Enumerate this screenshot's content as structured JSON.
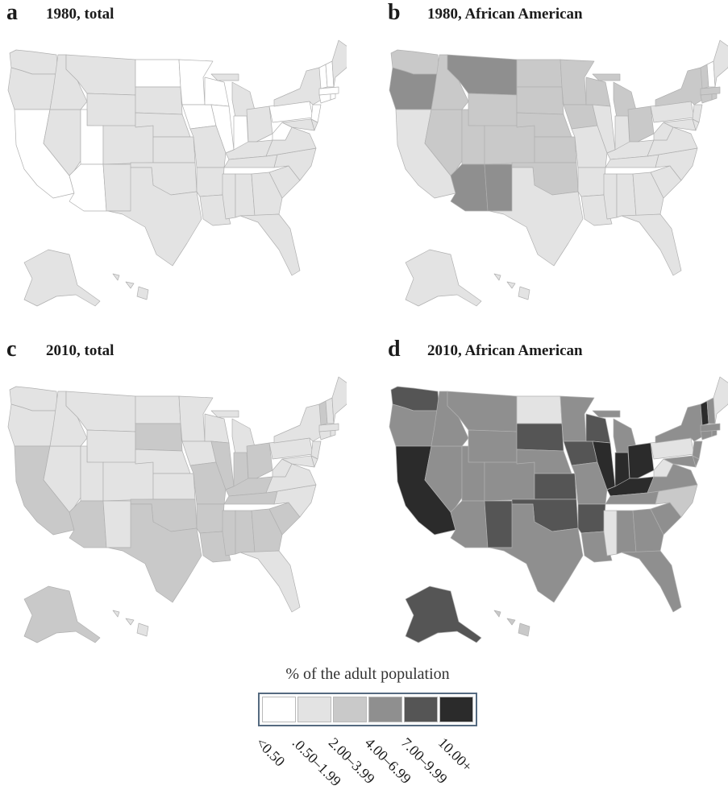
{
  "panels": [
    {
      "id": "a",
      "letter": "a",
      "title": "1980, total",
      "default_color": "#e3e3e3",
      "colors": {
        "CA": "#ffffff",
        "UT": "#ffffff",
        "AZ": "#ffffff",
        "ND": "#ffffff",
        "MN": "#ffffff",
        "IA": "#ffffff",
        "WI": "#ffffff",
        "IL": "#ffffff",
        "IN": "#ffffff",
        "WV": "#ffffff",
        "PA": "#ffffff",
        "NY": "#e3e3e3",
        "NH": "#ffffff",
        "VT": "#ffffff",
        "MA": "#ffffff",
        "CT": "#ffffff",
        "RI": "#ffffff",
        "NJ": "#ffffff"
      }
    },
    {
      "id": "b",
      "letter": "b",
      "title": "1980, African American",
      "default_color": "#e3e3e3",
      "colors": {
        "WA": "#c9c9c9",
        "OR": "#8f8f8f",
        "MT": "#8f8f8f",
        "AZ": "#8f8f8f",
        "NM": "#8f8f8f",
        "ID": "#c9c9c9",
        "NV": "#c9c9c9",
        "UT": "#c9c9c9",
        "WY": "#c9c9c9",
        "CO": "#c9c9c9",
        "ND": "#c9c9c9",
        "SD": "#c9c9c9",
        "NE": "#c9c9c9",
        "KS": "#c9c9c9",
        "MN": "#c9c9c9",
        "IA": "#c9c9c9",
        "WI": "#c9c9c9",
        "MI": "#c9c9c9",
        "OH": "#c9c9c9",
        "OK": "#c9c9c9",
        "NY": "#c9c9c9",
        "PA": "#e3e3e3",
        "VT": "#c9c9c9",
        "NH": "#ffffff",
        "CT": "#c9c9c9",
        "RI": "#c9c9c9",
        "MA": "#c9c9c9"
      }
    },
    {
      "id": "c",
      "letter": "c",
      "title": "2010, total",
      "default_color": "#e3e3e3",
      "colors": {
        "CA": "#c9c9c9",
        "AZ": "#c9c9c9",
        "SD": "#c9c9c9",
        "MO": "#c9c9c9",
        "AR": "#c9c9c9",
        "LA": "#c9c9c9",
        "MS": "#c9c9c9",
        "AL": "#c9c9c9",
        "GA": "#c9c9c9",
        "SC": "#c9c9c9",
        "TN": "#c9c9c9",
        "KY": "#c9c9c9",
        "IL": "#c9c9c9",
        "IN": "#c9c9c9",
        "OH": "#c9c9c9",
        "TX": "#c9c9c9",
        "OK": "#c9c9c9",
        "AK": "#c9c9c9",
        "VT": "#c9c9c9"
      }
    },
    {
      "id": "d",
      "letter": "d",
      "title": "2010, African American",
      "default_color": "#8f8f8f",
      "colors": {
        "WA": "#555555",
        "CA": "#2b2b2b",
        "SD": "#555555",
        "KS": "#555555",
        "NM": "#555555",
        "OK": "#555555",
        "IA": "#555555",
        "WI": "#555555",
        "IL": "#2b2b2b",
        "IN": "#2b2b2b",
        "OH": "#2b2b2b",
        "KY": "#2b2b2b",
        "AR": "#555555",
        "AK": "#555555",
        "VT": "#2b2b2b",
        "ND": "#e3e3e3",
        "PA": "#e3e3e3",
        "MS": "#e3e3e3",
        "NC": "#c9c9c9",
        "HI": "#c9c9c9",
        "ME": "#e3e3e3",
        "WV": "#e3e3e3"
      }
    }
  ],
  "legend": {
    "title": "% of the adult population",
    "items": [
      {
        "label": "<0.50",
        "color": "#ffffff"
      },
      {
        "label": ".0.50–1.99",
        "color": "#e3e3e3"
      },
      {
        "label": "2.00–3.99",
        "color": "#c9c9c9"
      },
      {
        "label": "4.00–6.99",
        "color": "#8f8f8f"
      },
      {
        "label": "7.00–9.99",
        "color": "#555555"
      },
      {
        "label": "10.00+",
        "color": "#2b2b2b"
      }
    ]
  }
}
